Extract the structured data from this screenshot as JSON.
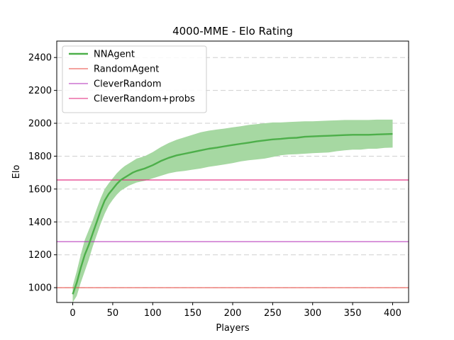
{
  "chart_data": {
    "type": "line",
    "title": "4000-MME - Elo Rating",
    "xlabel": "Players",
    "ylabel": "Elo",
    "xlim": [
      -20,
      420
    ],
    "ylim": [
      910,
      2500
    ],
    "xticks": [
      0,
      50,
      100,
      150,
      200,
      250,
      300,
      350,
      400
    ],
    "yticks": [
      1000,
      1200,
      1400,
      1600,
      1800,
      2000,
      2200,
      2400
    ],
    "grid": {
      "y": true,
      "style": "dashed"
    },
    "legend": {
      "placement": "top-left"
    },
    "series": [
      {
        "name": "NNAgent",
        "type": "line",
        "color": "#4daf4a",
        "band_color": "#a6d8a2",
        "x": [
          0,
          5,
          10,
          15,
          20,
          25,
          30,
          35,
          40,
          45,
          50,
          55,
          60,
          65,
          70,
          75,
          80,
          90,
          100,
          110,
          120,
          130,
          140,
          150,
          160,
          170,
          180,
          190,
          200,
          210,
          220,
          230,
          240,
          250,
          260,
          270,
          280,
          290,
          300,
          310,
          320,
          330,
          340,
          350,
          360,
          370,
          380,
          390,
          400
        ],
        "values": [
          960,
          1030,
          1120,
          1200,
          1260,
          1330,
          1400,
          1470,
          1530,
          1570,
          1600,
          1630,
          1655,
          1670,
          1685,
          1700,
          1710,
          1725,
          1745,
          1770,
          1790,
          1805,
          1815,
          1825,
          1835,
          1845,
          1852,
          1860,
          1868,
          1875,
          1882,
          1890,
          1896,
          1902,
          1905,
          1910,
          1912,
          1918,
          1920,
          1922,
          1924,
          1926,
          1928,
          1930,
          1930,
          1930,
          1932,
          1934,
          1935
        ],
        "lower": [
          910,
          950,
          1030,
          1100,
          1170,
          1250,
          1320,
          1390,
          1450,
          1500,
          1535,
          1565,
          1590,
          1605,
          1620,
          1630,
          1640,
          1650,
          1665,
          1680,
          1695,
          1705,
          1710,
          1718,
          1725,
          1735,
          1742,
          1750,
          1758,
          1768,
          1775,
          1780,
          1785,
          1795,
          1805,
          1810,
          1812,
          1815,
          1818,
          1820,
          1822,
          1830,
          1835,
          1840,
          1840,
          1845,
          1845,
          1850,
          1852
        ],
        "upper": [
          1010,
          1100,
          1200,
          1290,
          1350,
          1410,
          1480,
          1545,
          1600,
          1635,
          1665,
          1695,
          1720,
          1740,
          1755,
          1770,
          1785,
          1800,
          1825,
          1855,
          1880,
          1900,
          1915,
          1930,
          1945,
          1955,
          1962,
          1968,
          1975,
          1982,
          1990,
          1995,
          2000,
          2005,
          2005,
          2008,
          2010,
          2012,
          2012,
          2014,
          2016,
          2018,
          2020,
          2020,
          2020,
          2020,
          2022,
          2022,
          2022
        ]
      },
      {
        "name": "RandomAgent",
        "type": "hline",
        "color": "#e8453c",
        "y": 1000
      },
      {
        "name": "CleverRandom",
        "type": "hline",
        "color": "#b22bb8",
        "y": 1280
      },
      {
        "name": "CleverRandom+probs",
        "type": "hline",
        "color": "#e0217a",
        "y": 1655
      }
    ]
  }
}
